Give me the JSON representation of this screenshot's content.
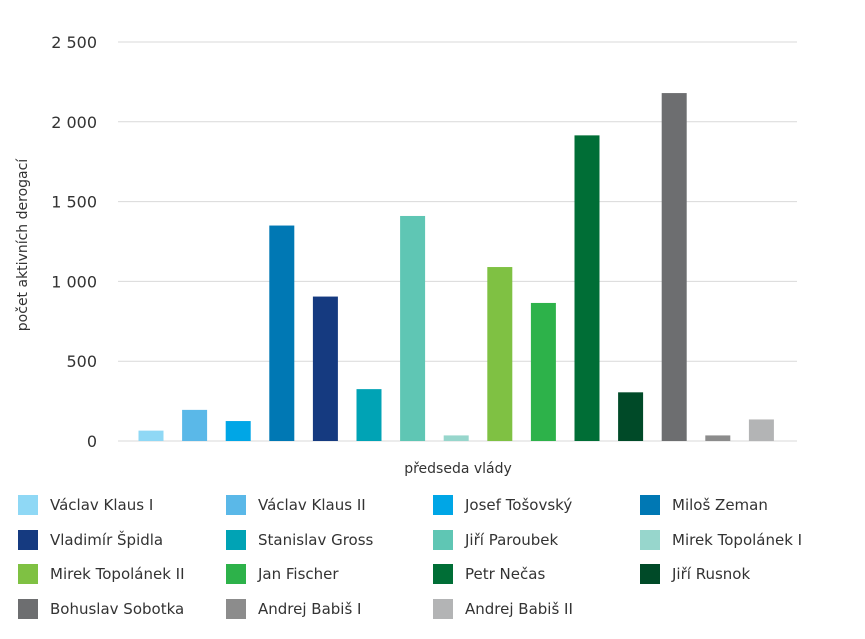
{
  "chart_data": {
    "type": "bar",
    "xlabel": "předseda vlády",
    "ylabel": "počet aktivních derogací",
    "ylim": [
      0,
      2500
    ],
    "yticks": [
      0,
      500,
      1000,
      1500,
      2000,
      2500
    ],
    "ytick_labels": [
      "0",
      "500",
      "1 000",
      "1 500",
      "2 000",
      "2 500"
    ],
    "grid": true,
    "legend_position": "bottom",
    "categories": [
      "Václav Klaus I",
      "Václav Klaus II",
      "Josef Tošovský",
      "Miloš Zeman",
      "Vladimír Špidla",
      "Stanislav Gross",
      "Jiří Paroubek",
      "Mirek Topolánek I",
      "Mirek Topolánek II",
      "Jan Fischer",
      "Petr Nečas",
      "Jiří Rusnok",
      "Bohuslav Sobotka",
      "Andrej Babiš I",
      "Andrej Babiš II"
    ],
    "values": [
      65,
      195,
      125,
      1350,
      905,
      325,
      1410,
      35,
      1090,
      865,
      1915,
      305,
      2180,
      35,
      135
    ],
    "colors": [
      "#8fd8f5",
      "#5ab8e8",
      "#00a6e6",
      "#0078b4",
      "#153a80",
      "#00a3b5",
      "#5fc6b4",
      "#97d6cc",
      "#7fc143",
      "#2db24a",
      "#006e36",
      "#004a28",
      "#6d6e70",
      "#8c8c8c",
      "#b3b4b5"
    ]
  }
}
